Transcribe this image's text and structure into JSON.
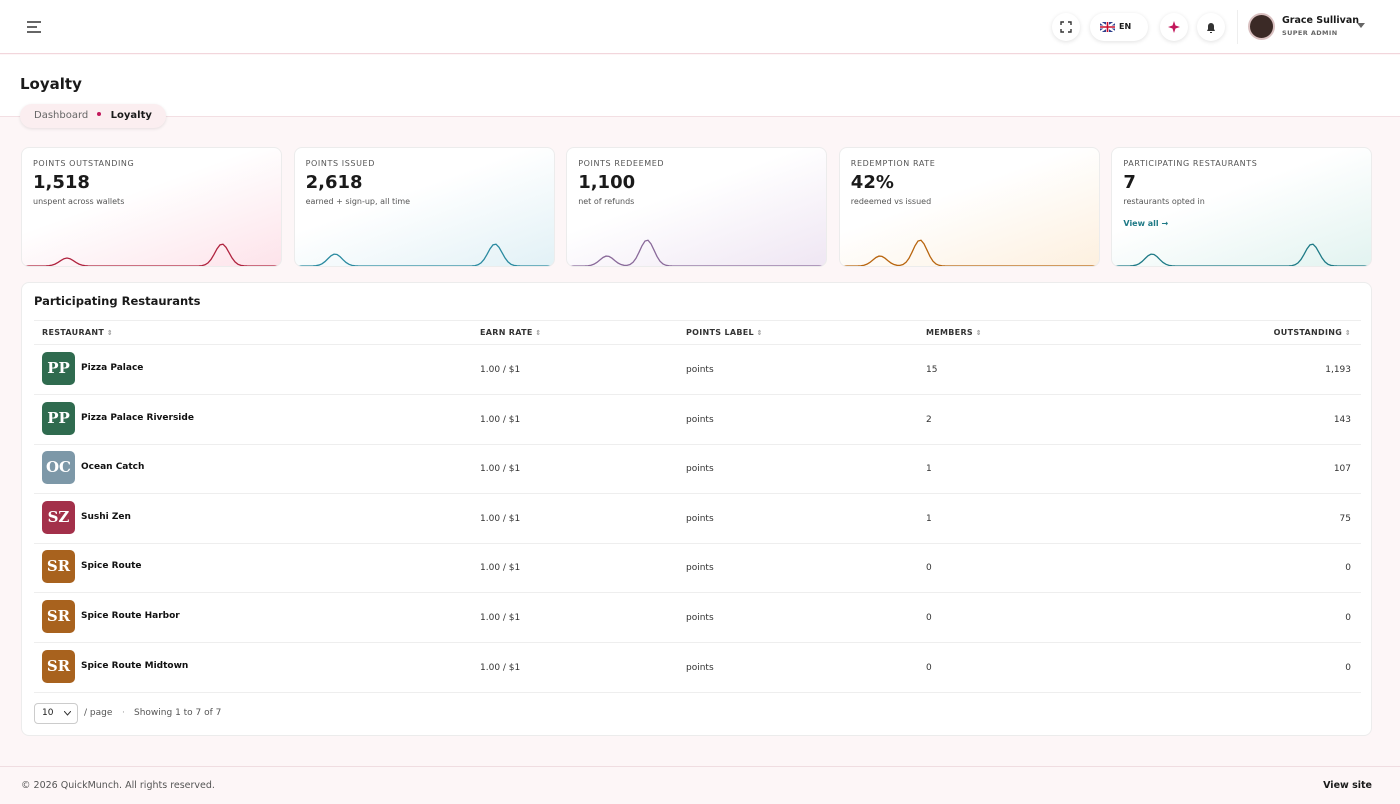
{
  "header": {
    "language": "EN",
    "user_name": "Grace Sullivan",
    "user_role": "SUPER ADMIN"
  },
  "page": {
    "title": "Loyalty",
    "breadcrumb": [
      "Dashboard",
      "Loyalty"
    ]
  },
  "stats": [
    {
      "label": "POINTS OUTSTANDING",
      "value": "1,518",
      "note": "unspent across wallets",
      "color": "#b0243f"
    },
    {
      "label": "POINTS ISSUED",
      "value": "2,618",
      "note": "earned + sign-up, all time",
      "color": "#2a8aa0"
    },
    {
      "label": "POINTS REDEEMED",
      "value": "1,100",
      "note": "net of refunds",
      "color": "#8a6a9a"
    },
    {
      "label": "REDEMPTION RATE",
      "value": "42%",
      "note": "redeemed vs issued",
      "color": "#b8650f"
    },
    {
      "label": "PARTICIPATING RESTAURANTS",
      "value": "7",
      "note": "restaurants opted in",
      "link": "View all →",
      "color": "#1f7a86"
    }
  ],
  "table": {
    "title": "Participating Restaurants",
    "columns": [
      "RESTAURANT",
      "EARN RATE",
      "POINTS LABEL",
      "MEMBERS",
      "OUTSTANDING"
    ],
    "rows": [
      {
        "initials": "PP",
        "name": "Pizza Palace",
        "earn_rate": "1.00 / $1",
        "points_label": "points",
        "members": "15",
        "outstanding": "1,193",
        "color": "#2f6b4f"
      },
      {
        "initials": "PP",
        "name": "Pizza Palace Riverside",
        "earn_rate": "1.00 / $1",
        "points_label": "points",
        "members": "2",
        "outstanding": "143",
        "color": "#2f6b4f"
      },
      {
        "initials": "OC",
        "name": "Ocean Catch",
        "earn_rate": "1.00 / $1",
        "points_label": "points",
        "members": "1",
        "outstanding": "107",
        "color": "#7d98a8"
      },
      {
        "initials": "SZ",
        "name": "Sushi Zen",
        "earn_rate": "1.00 / $1",
        "points_label": "points",
        "members": "1",
        "outstanding": "75",
        "color": "#a3304a"
      },
      {
        "initials": "SR",
        "name": "Spice Route",
        "earn_rate": "1.00 / $1",
        "points_label": "points",
        "members": "0",
        "outstanding": "0",
        "color": "#a8621e"
      },
      {
        "initials": "SR",
        "name": "Spice Route Harbor",
        "earn_rate": "1.00 / $1",
        "points_label": "points",
        "members": "0",
        "outstanding": "0",
        "color": "#a8621e"
      },
      {
        "initials": "SR",
        "name": "Spice Route Midtown",
        "earn_rate": "1.00 / $1",
        "points_label": "points",
        "members": "0",
        "outstanding": "0",
        "color": "#a8621e"
      }
    ]
  },
  "pagination": {
    "page_size": "10",
    "per_page": "/ page",
    "showing": "Showing 1 to 7 of 7"
  },
  "footer": {
    "copyright": "© 2026 QuickMunch. All rights reserved.",
    "link": "View site"
  }
}
